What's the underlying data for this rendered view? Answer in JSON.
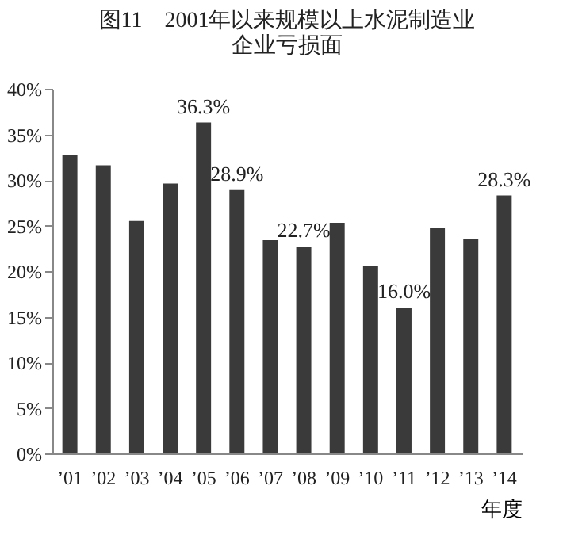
{
  "chart_data": {
    "type": "bar",
    "title": [
      "图11　2001年以来规模以上水泥制造业",
      "企业亏损面"
    ],
    "xlabel": "年度",
    "categories": [
      "’01",
      "’02",
      "’03",
      "’04",
      "’05",
      "’06",
      "’07",
      "’08",
      "’09",
      "’10",
      "’11",
      "’12",
      "’13",
      "’14"
    ],
    "values": [
      32.7,
      31.6,
      25.5,
      29.6,
      36.3,
      28.9,
      23.4,
      22.7,
      25.3,
      20.6,
      16.0,
      24.7,
      23.5,
      28.3
    ],
    "value_labels": [
      null,
      null,
      null,
      null,
      "36.3%",
      "28.9%",
      null,
      "22.7%",
      null,
      null,
      "16.0%",
      null,
      null,
      "28.3%"
    ],
    "color": "#3a3a3a",
    "ylim": [
      0,
      40
    ],
    "yticks": [
      {
        "value": 0,
        "label": "0%"
      },
      {
        "value": 5,
        "label": "5%"
      },
      {
        "value": 10,
        "label": "10%"
      },
      {
        "value": 15,
        "label": "15%"
      },
      {
        "value": 20,
        "label": "20%"
      },
      {
        "value": 25,
        "label": "25%"
      },
      {
        "value": 30,
        "label": "30%"
      },
      {
        "value": 35,
        "label": "35%"
      },
      {
        "value": 40,
        "label": "40%"
      }
    ],
    "grid": false
  }
}
